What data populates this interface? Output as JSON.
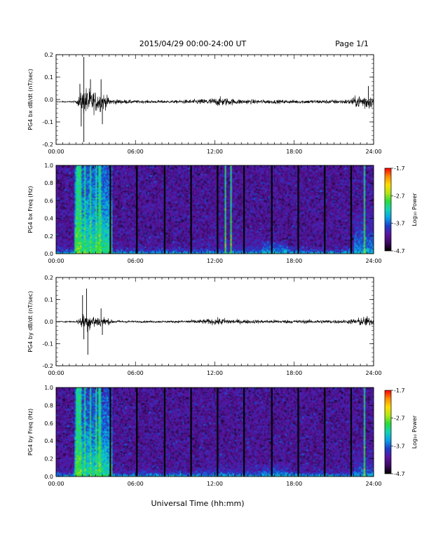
{
  "header": {
    "date_range": "2015/04/29  00:00-24:00 UT",
    "page_label": "Page 1/1"
  },
  "colors": {
    "trace": "#000000",
    "background": "#ffffff",
    "colormap": [
      "#000000",
      "#3c0a64",
      "#5a14a0",
      "#1e3cc8",
      "#0aa0e6",
      "#14d2b4",
      "#28dc3c",
      "#b4e614",
      "#ffdc00",
      "#ff8c00",
      "#ff0000"
    ]
  },
  "chart_data": [
    {
      "type": "line",
      "ylabel": "PG4 bx dB/dt (nT/sec)",
      "xlim": [
        "00:00",
        "24:00"
      ],
      "ylim": [
        -0.2,
        0.2
      ],
      "x_ticks": [
        "00:00",
        "06:00",
        "12:00",
        "18:00",
        "24:00"
      ],
      "y_ticks": [
        "0.2",
        "0.1",
        "0.0",
        "-0.1",
        "-0.2"
      ],
      "baseline": -0.01,
      "envelope": {
        "x_hours": [
          0,
          1.5,
          2.0,
          2.3,
          2.8,
          3.5,
          4.2,
          6,
          9,
          11,
          12.5,
          13.5,
          15,
          17,
          19,
          22,
          23.5,
          24
        ],
        "amplitude": [
          0.002,
          0.005,
          0.06,
          0.08,
          0.06,
          0.05,
          0.015,
          0.008,
          0.008,
          0.015,
          0.025,
          0.015,
          0.012,
          0.01,
          0.01,
          0.012,
          0.05,
          0.02
        ]
      },
      "spikes": [
        {
          "x_hours": 2.1,
          "y": 0.19
        },
        {
          "x_hours": 2.1,
          "y": -0.19
        },
        {
          "x_hours": 1.8,
          "y": 0.07
        },
        {
          "x_hours": 1.9,
          "y": -0.12
        },
        {
          "x_hours": 2.6,
          "y": 0.09
        },
        {
          "x_hours": 3.4,
          "y": 0.09
        },
        {
          "x_hours": 3.5,
          "y": -0.11
        },
        {
          "x_hours": 23.6,
          "y": 0.06
        }
      ]
    },
    {
      "type": "heatmap",
      "ylabel": "PG4 bx Freq (Hz)",
      "xlim": [
        "00:00",
        "24:00"
      ],
      "ylim": [
        0.0,
        1.0
      ],
      "x_ticks": [
        "00:00",
        "06:00",
        "12:00",
        "18:00",
        "24:00"
      ],
      "y_ticks": [
        "1.0",
        "0.8",
        "0.6",
        "0.4",
        "0.2",
        "0.0"
      ],
      "colorbar": {
        "label": "Log₁₀ Power",
        "ticks": [
          "-1.7",
          "-2.7",
          "-3.7",
          "-4.7"
        ],
        "min": -4.7,
        "max": -1.7
      },
      "gap_lines_hours": [
        4.1,
        6.1,
        8.2,
        10.2,
        12.2,
        14.2,
        16.3,
        18.3,
        20.3,
        22.3
      ],
      "strong_columns_hours": [
        1.6,
        1.8,
        2.2,
        2.6,
        3.0,
        3.3,
        12.8,
        13.2,
        23.3
      ],
      "features": [
        {
          "x_hours": [
            1.4,
            4.2
          ],
          "freq_max": 1.0,
          "power": -3.0
        },
        {
          "x_hours": [
            11.5,
            15.5
          ],
          "freq_max": 0.6,
          "power": -3.9
        },
        {
          "x_hours": [
            15.5,
            17.5
          ],
          "freq_max": 0.15,
          "power": -3.3
        },
        {
          "x_hours": [
            22.5,
            24.0
          ],
          "freq_max": 0.5,
          "power": -3.4
        }
      ]
    },
    {
      "type": "line",
      "ylabel": "PG4 by dB/dt (nT/sec)",
      "xlim": [
        "00:00",
        "24:00"
      ],
      "ylim": [
        -0.2,
        0.2
      ],
      "x_ticks": [
        "00:00",
        "06:00",
        "12:00",
        "18:00",
        "24:00"
      ],
      "y_ticks": [
        "0.2",
        "0.1",
        "0.0",
        "-0.1",
        "-0.2"
      ],
      "baseline": 0.0,
      "envelope": {
        "x_hours": [
          0,
          1.5,
          2.0,
          2.3,
          2.8,
          3.5,
          4.2,
          6,
          9,
          11,
          12.5,
          13.5,
          15,
          17,
          19,
          22,
          23.5,
          24
        ],
        "amplitude": [
          0.002,
          0.005,
          0.04,
          0.05,
          0.04,
          0.03,
          0.01,
          0.005,
          0.006,
          0.012,
          0.02,
          0.012,
          0.01,
          0.01,
          0.01,
          0.01,
          0.03,
          0.015
        ]
      },
      "spikes": [
        {
          "x_hours": 2.3,
          "y": 0.15
        },
        {
          "x_hours": 2.4,
          "y": -0.15
        },
        {
          "x_hours": 2.0,
          "y": 0.12
        },
        {
          "x_hours": 2.1,
          "y": -0.08
        },
        {
          "x_hours": 3.4,
          "y": 0.06
        },
        {
          "x_hours": 3.5,
          "y": -0.06
        }
      ]
    },
    {
      "type": "heatmap",
      "ylabel": "PG4 by Freq (Hz)",
      "xlim": [
        "00:00",
        "24:00"
      ],
      "ylim": [
        0.0,
        1.0
      ],
      "x_ticks": [
        "00:00",
        "06:00",
        "12:00",
        "18:00",
        "24:00"
      ],
      "y_ticks": [
        "1.0",
        "0.8",
        "0.6",
        "0.4",
        "0.2",
        "0.0"
      ],
      "colorbar": {
        "label": "Log₁₀ Power",
        "ticks": [
          "-1.7",
          "-2.7",
          "-3.7",
          "-4.7"
        ],
        "min": -4.7,
        "max": -1.7
      },
      "gap_lines_hours": [
        4.1,
        6.1,
        8.2,
        10.2,
        12.2,
        14.2,
        16.3,
        18.3,
        20.3,
        22.3
      ],
      "strong_columns_hours": [
        1.6,
        1.8,
        2.2,
        2.6,
        3.0,
        3.3,
        23.3
      ],
      "features": [
        {
          "x_hours": [
            1.4,
            4.2
          ],
          "freq_max": 1.0,
          "power": -3.1
        },
        {
          "x_hours": [
            11.5,
            15.5
          ],
          "freq_max": 0.5,
          "power": -3.9
        },
        {
          "x_hours": [
            15.5,
            17.5
          ],
          "freq_max": 0.15,
          "power": -3.4
        },
        {
          "x_hours": [
            22.5,
            24.0
          ],
          "freq_max": 0.3,
          "power": -3.5
        }
      ]
    }
  ],
  "xlabel": "Universal Time (hh:mm)"
}
